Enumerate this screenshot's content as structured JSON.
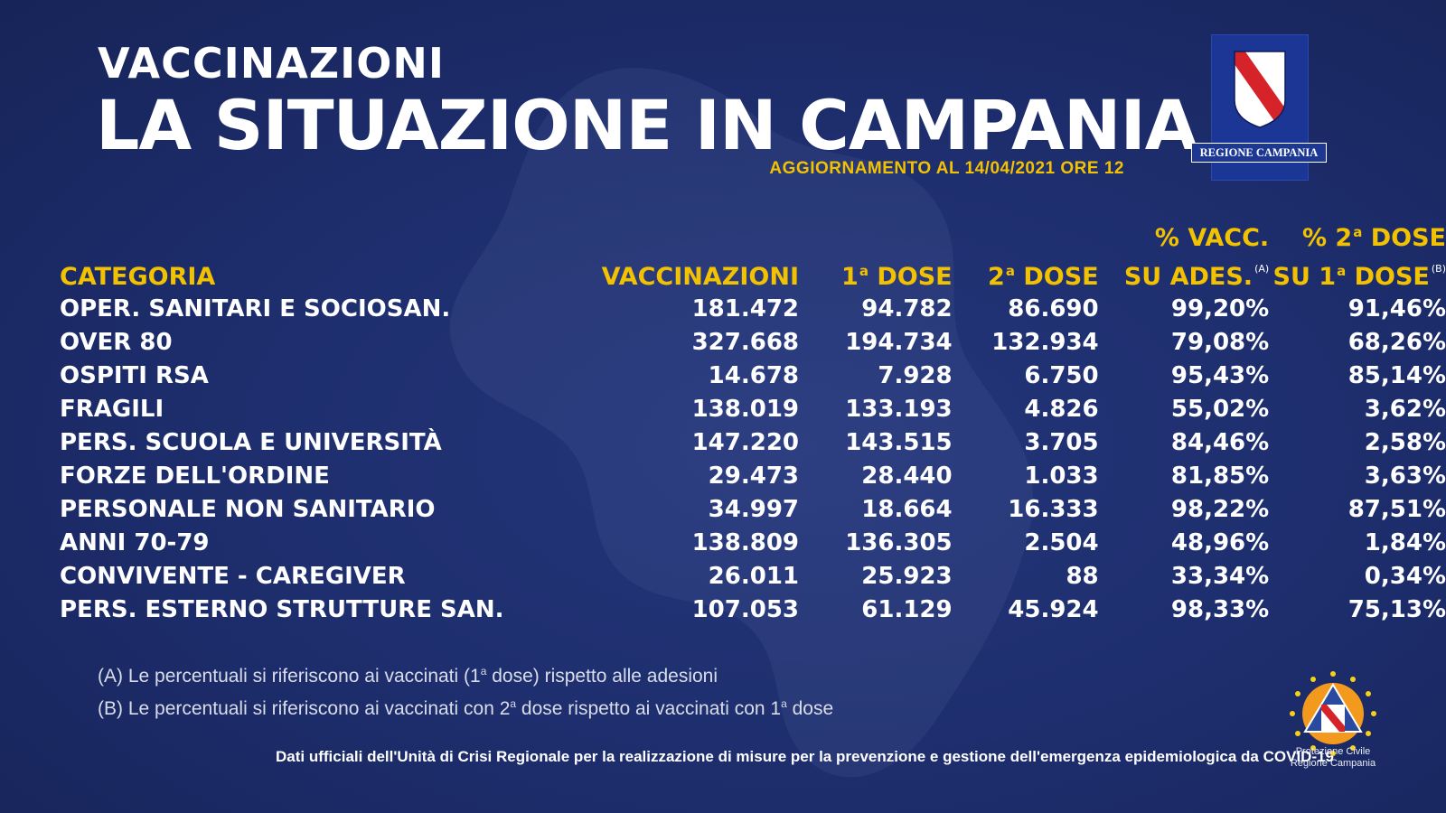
{
  "header": {
    "kicker": "VACCINAZIONI",
    "title": "LA SITUAZIONE IN CAMPANIA",
    "update_prefix": "AGGIORNAMENTO AL ",
    "update_date": "14/04/2021",
    "update_suffix": " ORE 12"
  },
  "logo": {
    "caption": "REGIONE CAMPANIA"
  },
  "table": {
    "headers": {
      "category": "CATEGORIA",
      "vaccinations": "VACCINAZIONI",
      "dose1_num": "1",
      "dose1_sup": "a",
      "dose1_text": " DOSE",
      "dose2_num": "2",
      "dose2_sup": "a",
      "dose2_text": " DOSE",
      "pct_vacc_line1": "% VACC.",
      "pct_vacc_line2": "SU ADES.",
      "pct_vacc_note": "(A)",
      "pct_2dose_line1_a": "% 2",
      "pct_2dose_line1_sup": "a",
      "pct_2dose_line1_b": " DOSE",
      "pct_2dose_line2_a": "SU 1",
      "pct_2dose_line2_sup": "a",
      "pct_2dose_line2_b": " DOSE",
      "pct_2dose_note": "(B)"
    },
    "rows": [
      {
        "category": "OPER. SANITARI E SOCIOSAN.",
        "vaccinations": "181.472",
        "dose1": "94.782",
        "dose2": "86.690",
        "pct_vacc": "99,20%",
        "pct_2dose": "91,46%"
      },
      {
        "category": "OVER 80",
        "vaccinations": "327.668",
        "dose1": "194.734",
        "dose2": "132.934",
        "pct_vacc": "79,08%",
        "pct_2dose": "68,26%"
      },
      {
        "category": "OSPITI RSA",
        "vaccinations": "14.678",
        "dose1": "7.928",
        "dose2": "6.750",
        "pct_vacc": "95,43%",
        "pct_2dose": "85,14%"
      },
      {
        "category": "FRAGILI",
        "vaccinations": "138.019",
        "dose1": "133.193",
        "dose2": "4.826",
        "pct_vacc": "55,02%",
        "pct_2dose": "3,62%"
      },
      {
        "category": "PERS. SCUOLA E UNIVERSITÀ",
        "vaccinations": "147.220",
        "dose1": "143.515",
        "dose2": "3.705",
        "pct_vacc": "84,46%",
        "pct_2dose": "2,58%"
      },
      {
        "category": "FORZE DELL'ORDINE",
        "vaccinations": "29.473",
        "dose1": "28.440",
        "dose2": "1.033",
        "pct_vacc": "81,85%",
        "pct_2dose": "3,63%"
      },
      {
        "category": "PERSONALE NON SANITARIO",
        "vaccinations": "34.997",
        "dose1": "18.664",
        "dose2": "16.333",
        "pct_vacc": "98,22%",
        "pct_2dose": "87,51%"
      },
      {
        "category": "ANNI 70-79",
        "vaccinations": "138.809",
        "dose1": "136.305",
        "dose2": "2.504",
        "pct_vacc": "48,96%",
        "pct_2dose": "1,84%"
      },
      {
        "category": "CONVIVENTE - CAREGIVER",
        "vaccinations": "26.011",
        "dose1": "25.923",
        "dose2": "88",
        "pct_vacc": "33,34%",
        "pct_2dose": "0,34%"
      },
      {
        "category": "PERS. ESTERNO STRUTTURE SAN.",
        "vaccinations": "107.053",
        "dose1": "61.129",
        "dose2": "45.924",
        "pct_vacc": "98,33%",
        "pct_2dose": "75,13%"
      }
    ]
  },
  "notes": {
    "a_prefix": "(A) Le percentuali si riferiscono ai vaccinati (1",
    "a_sup": "a",
    "a_suffix": " dose) rispetto alle adesioni",
    "b_prefix": "(B) Le percentuali si riferiscono ai vaccinati con 2",
    "b_sup": "a",
    "b_middle": " dose rispetto ai vaccinati con 1",
    "b_sup2": "a",
    "b_suffix": " dose"
  },
  "footer": {
    "text": "Dati ufficiali dell'Unità di Crisi Regionale per la realizzazione di misure per la prevenzione e gestione dell'emergenza epidemiologica da COVID-19"
  },
  "protezione_civile": {
    "line1": "Protezione Civile",
    "line2": "Regione Campania"
  },
  "colors": {
    "background": "#1c2c6b",
    "accent_yellow": "#f2c200",
    "text_white": "#ffffff",
    "emblem_red": "#d6232a",
    "emblem_orange": "#f39a1e",
    "star_yellow": "#f7d117"
  }
}
